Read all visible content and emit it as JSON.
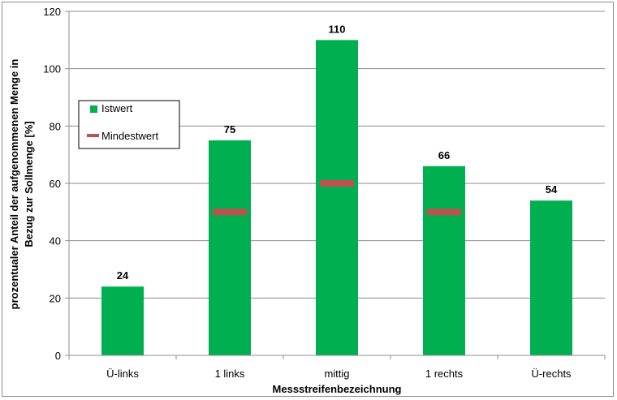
{
  "chart_data": {
    "type": "bar",
    "categories": [
      "Ü-links",
      "1 links",
      "mittig",
      "1 rechts",
      "Ü-rechts"
    ],
    "series": [
      {
        "name": "Istwert",
        "values": [
          24,
          75,
          110,
          66,
          54
        ],
        "color": "#00b050"
      },
      {
        "name": "Mindestwert",
        "values": [
          null,
          50,
          60,
          50,
          null
        ],
        "color": "#c0504d"
      }
    ],
    "data_labels": [
      "24",
      "75",
      "110",
      "66",
      "54"
    ],
    "xlabel": "Messstreifenbezeichnung",
    "ylabel_lines": [
      "prozentualer Anteil der aufgenommenen Menge in",
      "Bezug zur Sollmenge [%]"
    ],
    "ylim": [
      0,
      120
    ],
    "yticks": [
      0,
      20,
      40,
      60,
      80,
      100,
      120
    ],
    "grid": true,
    "legend_position": "left"
  }
}
